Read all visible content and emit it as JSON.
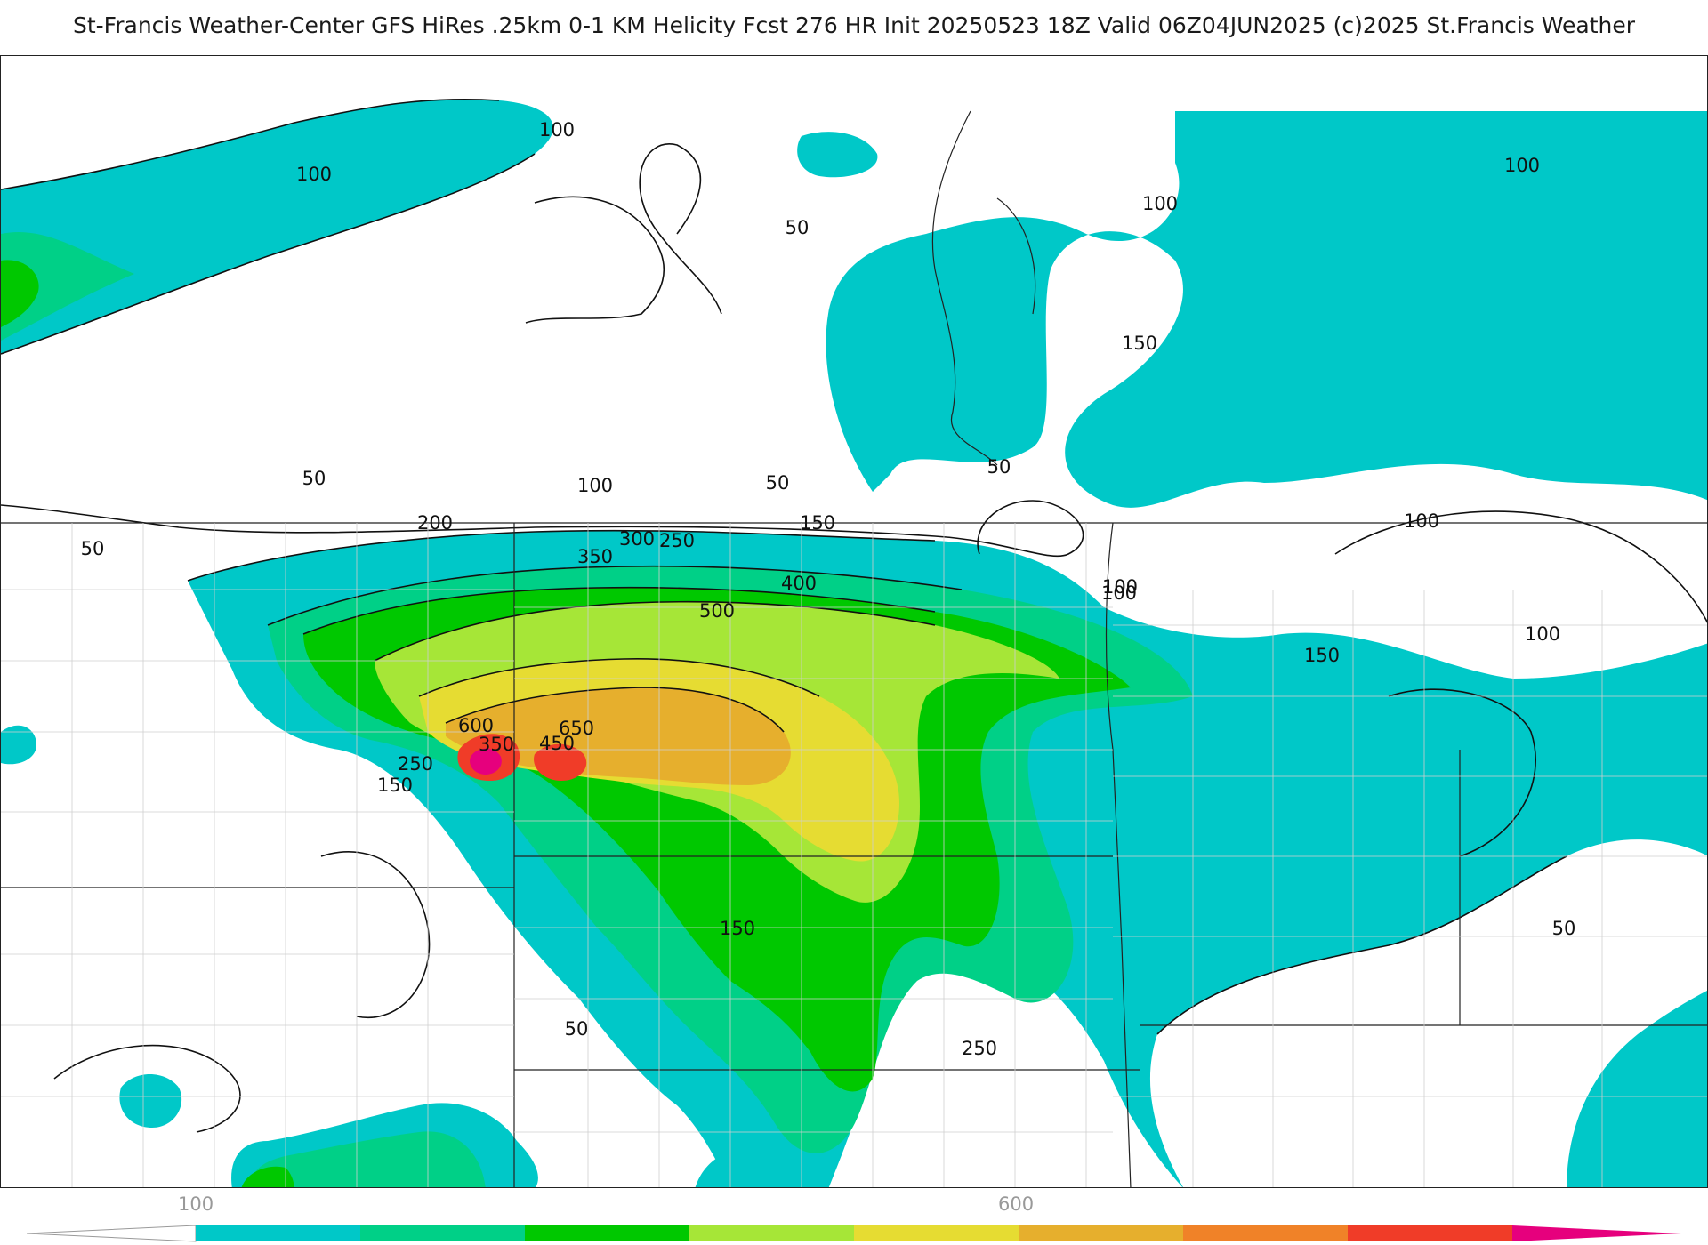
{
  "title": "St-Francis Weather-Center GFS HiRes .25km 0-1 KM Helicity Fcst 276 HR Init 20250523 18Z  Valid 06Z04JUN2025    (c)2025 St.Francis Weather",
  "contour_labels": [
    "100",
    "100",
    "50",
    "100",
    "100",
    "150",
    "100",
    "100",
    "50",
    "50",
    "50",
    "100",
    "50",
    "200",
    "150",
    "100",
    "350",
    "300",
    "250",
    "400",
    "500",
    "600",
    "650",
    "350",
    "450",
    "250",
    "150",
    "150",
    "50",
    "250",
    "150",
    "100",
    "50"
  ],
  "colorbar": {
    "tick_labels": [
      "100",
      "600"
    ],
    "colors": [
      "#00c8c8",
      "#00d087",
      "#00c800",
      "#a6e637",
      "#e6dc32",
      "#e6af2d",
      "#f08228",
      "#f03c28",
      "#e6007d"
    ]
  }
}
